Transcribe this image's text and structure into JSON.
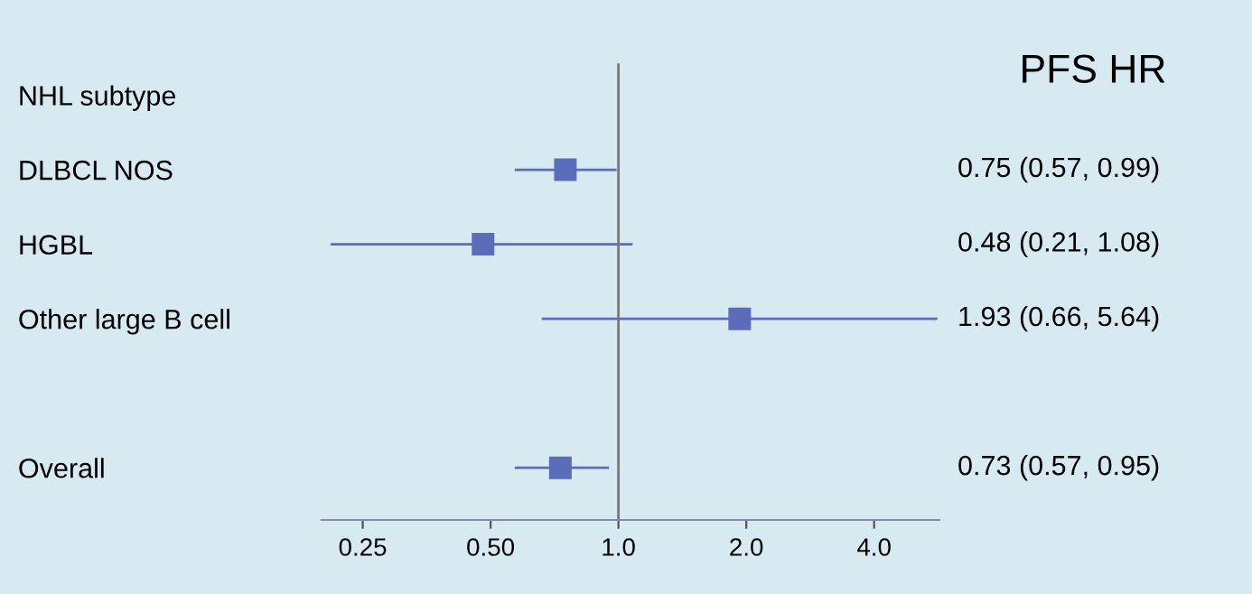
{
  "chart_data": {
    "type": "scatter",
    "orientation": "horizontal",
    "title": "PFS HR",
    "categories": [
      "NHL subtype",
      "DLBCL NOS",
      "HGBL",
      "Other large B cell",
      null,
      "Overall"
    ],
    "values": [
      null,
      0.75,
      0.48,
      1.93,
      null,
      0.73
    ],
    "errors": [
      null,
      [
        0.57,
        0.99
      ],
      [
        0.21,
        1.08
      ],
      [
        0.66,
        5.64
      ],
      null,
      [
        0.57,
        0.95
      ]
    ],
    "value_labels": [
      null,
      "0.75 (0.57, 0.99)",
      "0.48 (0.21, 1.08)",
      "1.93 (0.66, 5.64)",
      null,
      "0.73 (0.57, 0.95)"
    ],
    "color": "#5b6db8",
    "marker": "square",
    "log": "x",
    "xlim": [
      0.2,
      5.7
    ],
    "xticks": [
      {
        "value": 0.25,
        "label": "0.25"
      },
      {
        "value": 0.5,
        "label": "0.50"
      },
      {
        "value": 1.0,
        "label": "1.0"
      },
      {
        "value": 2.0,
        "label": "2.0"
      },
      {
        "value": 4.0,
        "label": "4.0"
      }
    ],
    "ref_lines": [
      {
        "axis": "x",
        "value": 1.0,
        "label": null,
        "color": "#777777"
      }
    ],
    "grid": false
  }
}
